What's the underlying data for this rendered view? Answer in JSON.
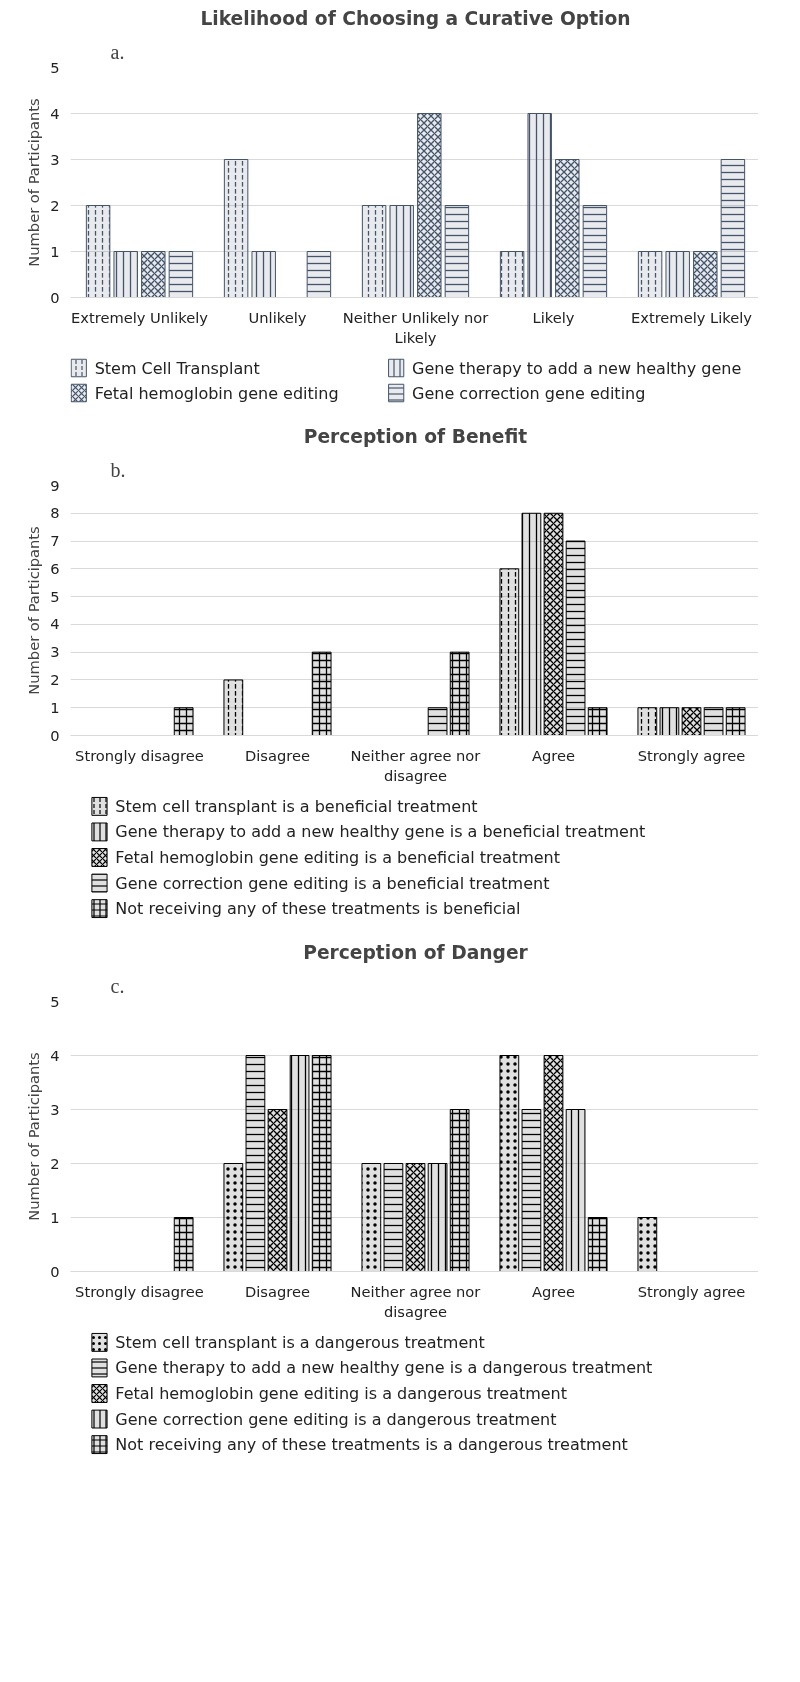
{
  "chart_data": [
    {
      "type": "bar",
      "title": "Likelihood of Choosing a Curative Option",
      "ylabel": "Number of Participants",
      "annotations": [
        "a."
      ],
      "categories": [
        "Extremely Unlikely",
        "Unlikely",
        "Neither Unlikely nor Likely",
        "Likely",
        "Extremely Likely"
      ],
      "series": [
        {
          "name": "Stem Cell Transplant",
          "color": "#44546a",
          "values": [
            2,
            3,
            2,
            1,
            1
          ]
        },
        {
          "name": "Gene therapy to add a new healthy gene",
          "color": "#44546a",
          "values": [
            1,
            1,
            2,
            4,
            1
          ]
        },
        {
          "name": "Fetal hemoglobin gene editing",
          "color": "#44546a",
          "values": [
            1,
            0,
            4,
            3,
            1
          ]
        },
        {
          "name": "Gene correction gene editing",
          "color": "#44546a",
          "values": [
            1,
            1,
            2,
            2,
            3
          ]
        }
      ],
      "ylim": [
        0,
        5
      ],
      "yticks": [
        0,
        1,
        2,
        3,
        4,
        5
      ],
      "grid": "y",
      "legend": "bottom"
    },
    {
      "type": "bar",
      "title": "Perception of Benefit",
      "ylabel": "Number of Participants",
      "annotations": [
        "b."
      ],
      "categories": [
        "Strongly disagree",
        "Disagree",
        "Neither agree nor disagree",
        "Agree",
        "Strongly agree"
      ],
      "series": [
        {
          "name": "Stem cell transplant is a beneficial treatment",
          "color": "#000000",
          "values": [
            0,
            2,
            0,
            6,
            1
          ]
        },
        {
          "name": "Gene therapy to add a new healthy gene is a beneficial treatment",
          "color": "#000000",
          "values": [
            0,
            0,
            0,
            8,
            1
          ]
        },
        {
          "name": "Fetal hemoglobin gene editing is a beneficial treatment",
          "color": "#000000",
          "values": [
            0,
            0,
            0,
            8,
            1
          ]
        },
        {
          "name": "Gene correction gene editing is a beneficial treatment",
          "color": "#000000",
          "values": [
            0,
            0,
            1,
            7,
            1
          ]
        },
        {
          "name": "Not receiving any of these treatments is beneficial",
          "color": "#000000",
          "values": [
            1,
            3,
            3,
            1,
            1
          ]
        }
      ],
      "ylim": [
        0,
        9
      ],
      "yticks": [
        0,
        1,
        2,
        3,
        4,
        5,
        6,
        7,
        8,
        9
      ],
      "grid": "y",
      "legend": "bottom"
    },
    {
      "type": "bar",
      "title": "Perception of Danger",
      "ylabel": "Number of Participants",
      "annotations": [
        "c."
      ],
      "categories": [
        "Strongly disagree",
        "Disagree",
        "Neither agree nor disagree",
        "Agree",
        "Strongly agree"
      ],
      "series": [
        {
          "name": "Stem cell transplant is a dangerous treatment",
          "color": "#000000",
          "values": [
            0,
            2,
            2,
            4,
            1
          ]
        },
        {
          "name": "Gene therapy to add a new healthy gene is a dangerous treatment",
          "color": "#000000",
          "values": [
            0,
            4,
            2,
            3,
            0
          ]
        },
        {
          "name": "Fetal hemoglobin gene editing is a dangerous treatment",
          "color": "#000000",
          "values": [
            0,
            3,
            2,
            4,
            0
          ]
        },
        {
          "name": "Gene correction gene editing is a dangerous treatment",
          "color": "#000000",
          "values": [
            0,
            4,
            2,
            3,
            0
          ]
        },
        {
          "name": "Not receiving any of these treatments is a dangerous treatment",
          "color": "#000000",
          "values": [
            1,
            4,
            3,
            1,
            0
          ]
        }
      ],
      "ylim": [
        0,
        5
      ],
      "yticks": [
        0,
        1,
        2,
        3,
        4,
        5
      ],
      "grid": "y",
      "legend": "bottom"
    }
  ]
}
